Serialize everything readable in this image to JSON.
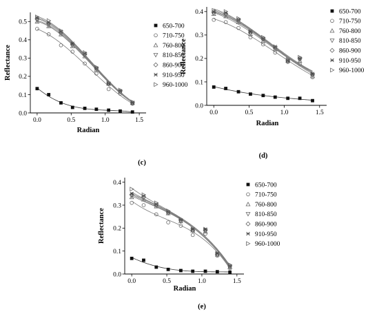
{
  "legend": [
    "650-700",
    "710-750",
    "760-800",
    "810-850",
    "860-900",
    "910-950",
    "960-1000"
  ],
  "chart_data": [
    {
      "panel": "(c)",
      "type": "scatter",
      "xlabel": "Radian",
      "ylabel": "Reflectance",
      "xlim": [
        -0.1,
        1.6
      ],
      "ylim": [
        0.0,
        0.55
      ],
      "xticks": [
        "0.0",
        "0.5",
        "1.0",
        "1.5"
      ],
      "yticks": [
        "0.0",
        "0.1",
        "0.2",
        "0.3",
        "0.4",
        "0.5"
      ],
      "x": [
        0.0,
        0.17,
        0.35,
        0.52,
        0.7,
        0.87,
        1.05,
        1.22,
        1.4
      ],
      "series": [
        {
          "name": "650-700",
          "values": [
            0.133,
            0.1,
            0.055,
            0.03,
            0.025,
            0.02,
            0.015,
            0.01,
            0.005
          ]
        },
        {
          "name": "710-750",
          "values": [
            0.46,
            0.43,
            0.37,
            0.335,
            0.27,
            0.215,
            0.13,
            0.105,
            0.05
          ]
        },
        {
          "name": "760-800",
          "values": [
            0.5,
            0.475,
            0.43,
            0.365,
            0.31,
            0.235,
            0.16,
            0.115,
            0.055
          ]
        },
        {
          "name": "810-850",
          "values": [
            0.505,
            0.48,
            0.435,
            0.37,
            0.315,
            0.24,
            0.16,
            0.115,
            0.055
          ]
        },
        {
          "name": "860-900",
          "values": [
            0.515,
            0.49,
            0.44,
            0.375,
            0.32,
            0.245,
            0.16,
            0.12,
            0.055
          ]
        },
        {
          "name": "910-950",
          "values": [
            0.52,
            0.495,
            0.445,
            0.38,
            0.325,
            0.245,
            0.16,
            0.12,
            0.055
          ]
        },
        {
          "name": "960-1000",
          "values": [
            0.525,
            0.505,
            0.45,
            0.38,
            0.33,
            0.25,
            0.165,
            0.125,
            0.06
          ]
        }
      ]
    },
    {
      "panel": "(d)",
      "type": "scatter",
      "xlabel": "Radian",
      "ylabel": "Reflectance",
      "xlim": [
        -0.1,
        1.6
      ],
      "ylim": [
        0.0,
        0.42
      ],
      "xticks": [
        "0.0",
        "0.5",
        "1.0",
        "1.5"
      ],
      "yticks": [
        "0.0",
        "0.1",
        "0.2",
        "0.3",
        "0.4"
      ],
      "x": [
        0.0,
        0.17,
        0.35,
        0.52,
        0.7,
        0.87,
        1.05,
        1.22,
        1.4
      ],
      "series": [
        {
          "name": "650-700",
          "values": [
            0.078,
            0.072,
            0.058,
            0.048,
            0.042,
            0.035,
            0.03,
            0.03,
            0.02
          ]
        },
        {
          "name": "710-750",
          "values": [
            0.365,
            0.355,
            0.33,
            0.29,
            0.26,
            0.225,
            0.185,
            0.175,
            0.12
          ]
        },
        {
          "name": "760-800",
          "values": [
            0.39,
            0.38,
            0.355,
            0.305,
            0.275,
            0.24,
            0.19,
            0.19,
            0.125
          ]
        },
        {
          "name": "810-850",
          "values": [
            0.393,
            0.385,
            0.36,
            0.31,
            0.28,
            0.245,
            0.19,
            0.195,
            0.13
          ]
        },
        {
          "name": "860-900",
          "values": [
            0.395,
            0.39,
            0.365,
            0.31,
            0.285,
            0.245,
            0.19,
            0.2,
            0.13
          ]
        },
        {
          "name": "910-950",
          "values": [
            0.4,
            0.395,
            0.365,
            0.315,
            0.285,
            0.25,
            0.19,
            0.2,
            0.135
          ]
        },
        {
          "name": "960-1000",
          "values": [
            0.405,
            0.4,
            0.37,
            0.315,
            0.29,
            0.25,
            0.195,
            0.205,
            0.135
          ]
        }
      ]
    },
    {
      "panel": "(e)",
      "type": "scatter",
      "xlabel": "Radian",
      "ylabel": "Reflectance",
      "xlim": [
        -0.1,
        1.6
      ],
      "ylim": [
        0.0,
        0.42
      ],
      "xticks": [
        "0.0",
        "0.5",
        "1.0",
        "1.5"
      ],
      "yticks": [
        "0.0",
        "0.1",
        "0.2",
        "0.3",
        "0.4"
      ],
      "x": [
        0.0,
        0.17,
        0.35,
        0.52,
        0.7,
        0.87,
        1.05,
        1.22,
        1.4
      ],
      "series": [
        {
          "name": "650-700",
          "values": [
            0.068,
            0.06,
            0.03,
            0.02,
            0.015,
            0.012,
            0.012,
            0.01,
            0.008
          ]
        },
        {
          "name": "710-750",
          "values": [
            0.31,
            0.3,
            0.26,
            0.225,
            0.21,
            0.17,
            0.175,
            0.08,
            0.025
          ]
        },
        {
          "name": "760-800",
          "values": [
            0.335,
            0.325,
            0.295,
            0.265,
            0.23,
            0.19,
            0.185,
            0.085,
            0.03
          ]
        },
        {
          "name": "810-850",
          "values": [
            0.34,
            0.33,
            0.3,
            0.265,
            0.23,
            0.19,
            0.19,
            0.085,
            0.03
          ]
        },
        {
          "name": "860-900",
          "values": [
            0.345,
            0.335,
            0.3,
            0.27,
            0.235,
            0.19,
            0.19,
            0.085,
            0.035
          ]
        },
        {
          "name": "910-950",
          "values": [
            0.35,
            0.34,
            0.305,
            0.27,
            0.235,
            0.195,
            0.195,
            0.09,
            0.035
          ]
        },
        {
          "name": "960-1000",
          "values": [
            0.37,
            0.345,
            0.31,
            0.275,
            0.24,
            0.195,
            0.195,
            0.09,
            0.04
          ]
        }
      ]
    }
  ]
}
